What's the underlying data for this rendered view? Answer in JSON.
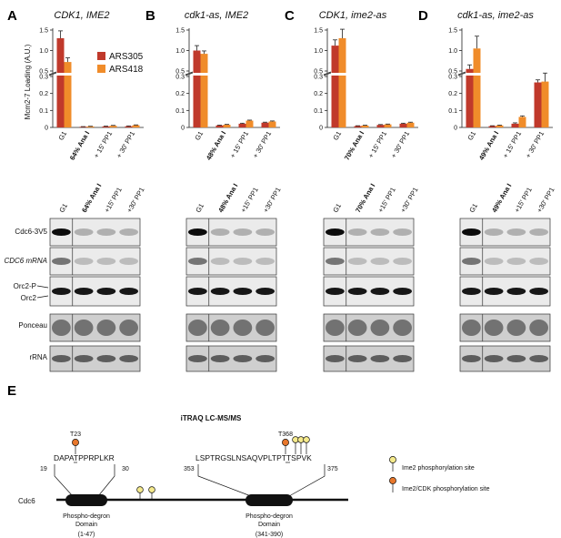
{
  "chart_data": [
    {
      "type": "bar",
      "panel": "A",
      "title": "CDK1, IME2",
      "ylabel": "Mcm2-7 Loading (A.U.)",
      "categories": [
        "G1",
        "64% Ana I",
        "+ 15' PP1",
        "+ 30' PP1"
      ],
      "bold_category": 1,
      "y_ticks_upper": [
        "0.5",
        "1.0",
        "1.5"
      ],
      "y_ticks_lower": [
        "0",
        "0.1",
        "0.2",
        "0.3"
      ],
      "series": [
        {
          "name": "ARS305",
          "values": [
            1.3,
            0.004,
            0.006,
            0.007
          ],
          "errors": [
            0.18,
            0.001,
            0.002,
            0.002
          ]
        },
        {
          "name": "ARS418",
          "values": [
            0.72,
            0.006,
            0.01,
            0.013
          ],
          "errors": [
            0.1,
            0.001,
            0.002,
            0.002
          ]
        }
      ]
    },
    {
      "type": "bar",
      "panel": "B",
      "title": "cdk1-as, IME2",
      "categories": [
        "G1",
        "48% Ana I",
        "+ 15' PP1",
        "+ 30' PP1"
      ],
      "bold_category": 1,
      "y_ticks_upper": [
        "0.5",
        "1.0",
        "1.5"
      ],
      "y_ticks_lower": [
        "0",
        "0.1",
        "0.2",
        "0.3"
      ],
      "series": [
        {
          "name": "ARS305",
          "values": [
            1.0,
            0.012,
            0.022,
            0.028
          ],
          "errors": [
            0.12,
            0.002,
            0.003,
            0.003
          ]
        },
        {
          "name": "ARS418",
          "values": [
            0.92,
            0.016,
            0.04,
            0.035
          ],
          "errors": [
            0.07,
            0.002,
            0.003,
            0.003
          ]
        }
      ]
    },
    {
      "type": "bar",
      "panel": "C",
      "title": "CDK1, ime2-as",
      "categories": [
        "G1",
        "70% Ana I",
        "+ 15' PP1",
        "+ 30' PP1"
      ],
      "bold_category": 1,
      "y_ticks_upper": [
        "0.5",
        "1.0",
        "1.5"
      ],
      "y_ticks_lower": [
        "0",
        "0.1",
        "0.2",
        "0.3"
      ],
      "series": [
        {
          "name": "ARS305",
          "values": [
            1.12,
            0.008,
            0.015,
            0.022
          ],
          "errors": [
            0.14,
            0.002,
            0.002,
            0.003
          ]
        },
        {
          "name": "ARS418",
          "values": [
            1.3,
            0.011,
            0.018,
            0.028
          ],
          "errors": [
            0.22,
            0.002,
            0.002,
            0.003
          ]
        }
      ]
    },
    {
      "type": "bar",
      "panel": "D",
      "title": "cdk1-as, ime2-as",
      "categories": [
        "G1",
        "49% Ana I",
        "+ 15' PP1",
        "+ 30' PP1"
      ],
      "bold_category": 1,
      "y_ticks_upper": [
        "0.5",
        "1.0",
        "1.5"
      ],
      "y_ticks_lower": [
        "0",
        "0.1",
        "0.2",
        "0.3"
      ],
      "series": [
        {
          "name": "ARS305",
          "values": [
            0.55,
            0.008,
            0.022,
            0.265
          ],
          "errors": [
            0.1,
            0.002,
            0.005,
            0.015
          ]
        },
        {
          "name": "ARS418",
          "values": [
            1.05,
            0.012,
            0.062,
            0.27
          ],
          "errors": [
            0.3,
            0.002,
            0.006,
            0.05
          ]
        }
      ]
    }
  ],
  "legend": [
    "ARS305",
    "ARS418"
  ],
  "colors": {
    "ARS305": "#c0392b",
    "ARS418": "#f08c2a",
    "ime2_site": "#f5ea8c",
    "cdk_site": "#e8772b"
  },
  "blots": {
    "lane_labels": [
      [
        "G1",
        "64% Ana I",
        "+15' PP1",
        "+30' PP1"
      ],
      [
        "G1",
        "48% Ana I",
        "+15' PP1",
        "+30' PP1"
      ],
      [
        "G1",
        "70% Ana I",
        "+15' PP1",
        "+30' PP1"
      ],
      [
        "G1",
        "49% Ana I",
        "+15' PP1",
        "+30' PP1"
      ]
    ],
    "rows": [
      "Cdc6-3V5",
      "CDC6 mRNA",
      "Orc2-P",
      "Orc2",
      "Ponceau",
      "rRNA"
    ]
  },
  "panel_e": {
    "letter": "E",
    "title": "iTRAQ LC-MS/MS",
    "protein": "Cdc6",
    "seq1": "DAPATPPRPLKR",
    "seq1_start": "19",
    "seq1_end": "30",
    "seq1_site": "T23",
    "seq2": "LSPTRGSLNSAQVPLTPTTSPVK",
    "seq2_start": "353",
    "seq2_end": "375",
    "seq2_site": "T368",
    "domain1": [
      "Phospho-degron",
      "Domain",
      "(1-47)"
    ],
    "domain2": [
      "Phospho-degron",
      "Domain",
      "(341-390)"
    ],
    "legend_ime2": "Ime2 phosphorylation site",
    "legend_cdk": "Ime2/CDK phosphorylation site"
  }
}
